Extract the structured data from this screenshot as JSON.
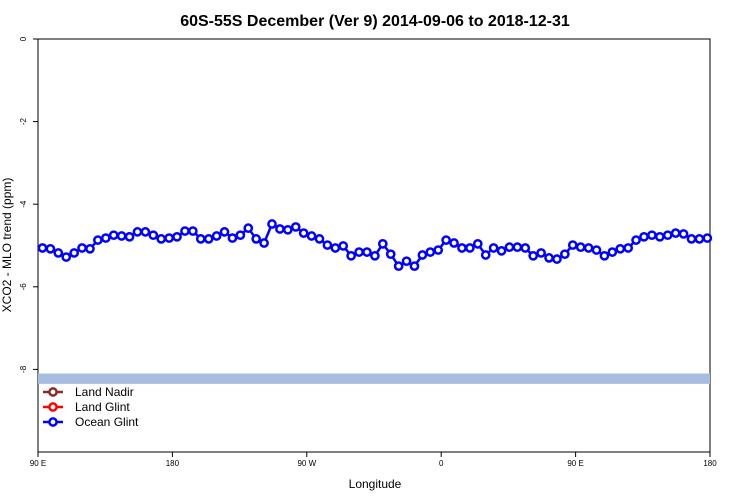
{
  "chart_data": {
    "type": "line",
    "title": "60S-55S December (Ver 9)   2014-09-06 to 2018-12-31",
    "x_label": "Longitude",
    "y_label": "XCO2 - MLO trend (ppm)",
    "xlim": [
      90,
      540
    ],
    "ylim": [
      -10,
      0
    ],
    "xticks": [
      {
        "value": 90,
        "label": "90 E"
      },
      180,
      {
        "value": 270,
        "label": "90 W"
      },
      {
        "value": 360,
        "label": "0"
      },
      {
        "value": 450,
        "label": "90 E"
      },
      {
        "value": 540,
        "label": "180"
      }
    ],
    "yticks": [
      0,
      -2,
      -4,
      -6,
      -8
    ],
    "legend": "bottomleft",
    "band": {
      "ylim": [
        -8.35,
        -8.1
      ],
      "color": "#a7bddf"
    },
    "series": [
      {
        "name": "Land Nadir",
        "color": "#8b2a2a",
        "x": [],
        "values": []
      },
      {
        "name": "Land Glint",
        "color": "#ff0000",
        "x": [],
        "values": []
      },
      {
        "name": "Ocean Glint",
        "color": "#0000ff",
        "x": [
          93,
          98.3,
          103.6,
          108.9,
          114.2,
          119.5,
          124.8,
          130.1,
          135.4,
          140.7,
          146,
          151.3,
          156.6,
          161.9,
          167.2,
          172.5,
          177.8,
          183.1,
          188.4,
          193.7,
          199,
          204.3,
          209.6,
          214.9,
          220.2,
          225.5,
          230.8,
          236.1,
          241.4,
          246.7,
          252,
          257.3,
          262.6,
          267.9,
          273.2,
          278.5,
          283.8,
          289.1,
          294.4,
          299.7,
          305,
          310.3,
          315.6,
          320.9,
          326.2,
          331.5,
          336.8,
          342.1,
          347.4,
          352.7,
          358,
          363.3,
          368.6,
          373.9,
          379.2,
          384.5,
          389.8,
          395.1,
          400.4,
          405.7,
          411,
          416.3,
          421.6,
          426.9,
          432.2,
          437.5,
          442.8,
          448.1,
          453.4,
          458.7,
          464,
          469.3,
          474.6,
          479.9,
          485.2,
          490.5,
          495.8,
          501.1,
          506.4,
          511.7,
          517,
          522.3,
          527.6,
          532.9,
          538.2
        ],
        "values": [
          -5.06,
          -5.08,
          -5.18,
          -5.28,
          -5.18,
          -5.06,
          -5.08,
          -4.87,
          -4.82,
          -4.75,
          -4.77,
          -4.79,
          -4.67,
          -4.67,
          -4.75,
          -4.84,
          -4.82,
          -4.79,
          -4.65,
          -4.65,
          -4.84,
          -4.84,
          -4.77,
          -4.67,
          -4.82,
          -4.75,
          -4.58,
          -4.84,
          -4.94,
          -4.48,
          -4.6,
          -4.62,
          -4.55,
          -4.7,
          -4.77,
          -4.84,
          -4.99,
          -5.06,
          -5.01,
          -5.25,
          -5.16,
          -5.16,
          -5.25,
          -4.96,
          -5.21,
          -5.5,
          -5.38,
          -5.5,
          -5.23,
          -5.16,
          -5.11,
          -4.87,
          -4.94,
          -5.06,
          -5.06,
          -4.96,
          -5.23,
          -5.06,
          -5.13,
          -5.04,
          -5.04,
          -5.06,
          -5.25,
          -5.18,
          -5.3,
          -5.33,
          -5.21,
          -4.99,
          -5.04,
          -5.06,
          -5.11,
          -5.25,
          -5.16,
          -5.08,
          -5.06,
          -4.87,
          -4.79,
          -4.75,
          -4.79,
          -4.75,
          -4.7,
          -4.72,
          -4.84,
          -4.84,
          -4.82
        ]
      }
    ]
  }
}
